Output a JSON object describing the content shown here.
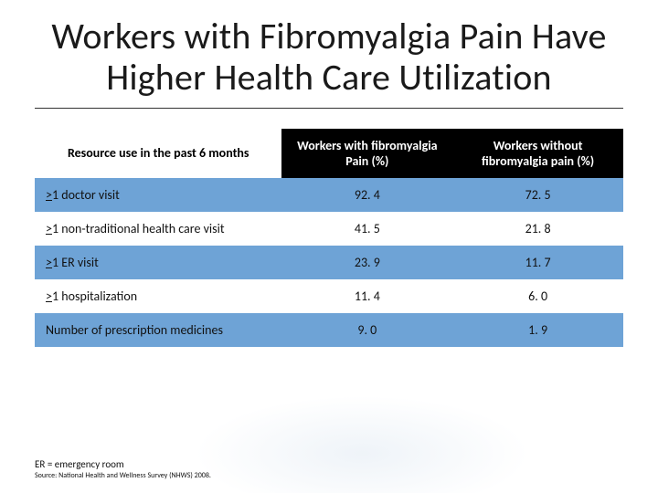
{
  "title": {
    "line1": "Workers with Fibromyalgia Pain Have",
    "line2": "Higher Health Care Utilization",
    "fontsize_pt": 30,
    "color": "#1a1a1a",
    "rule_color": "#333333"
  },
  "table": {
    "type": "table",
    "header_bg_data": "#000000",
    "header_fg_data": "#ffffff",
    "header_bg_first": "#ffffff",
    "header_fg_first": "#000000",
    "band_color": "#6ea3d6",
    "row_band_pattern": [
      "band",
      "plain",
      "band",
      "plain",
      "band"
    ],
    "col_widths_pct": [
      42,
      29,
      29
    ],
    "header_fontsize_pt": 14,
    "body_fontsize_pt": 14,
    "columns": [
      "Resource use in the past 6 months",
      "Workers with fibromyalgia Pain (%)",
      "Workers without fibromyalgia pain (%)"
    ],
    "rows": [
      {
        "label_prefix": ">",
        "label_rest": "1 doctor visit",
        "with": "92. 4",
        "without": "72. 5"
      },
      {
        "label_prefix": ">",
        "label_rest": "1 non-traditional health care visit",
        "with": "41. 5",
        "without": "21. 8"
      },
      {
        "label_prefix": ">",
        "label_rest": "1 ER visit",
        "with": "23. 9",
        "without": "11. 7"
      },
      {
        "label_prefix": ">",
        "label_rest": "1 hospitalization",
        "with": "11. 4",
        "without": "6. 0"
      },
      {
        "label_prefix": "",
        "label_rest": "Number of prescription medicines",
        "with": "9. 0",
        "without": "1. 9"
      }
    ]
  },
  "footnotes": {
    "line1": "ER = emergency room",
    "line1_fontsize_pt": 11,
    "line2": "Source: National Health and Wellness Survey (NHWS) 2008.",
    "line2_fontsize_pt": 8
  },
  "background_color": "#ffffff"
}
